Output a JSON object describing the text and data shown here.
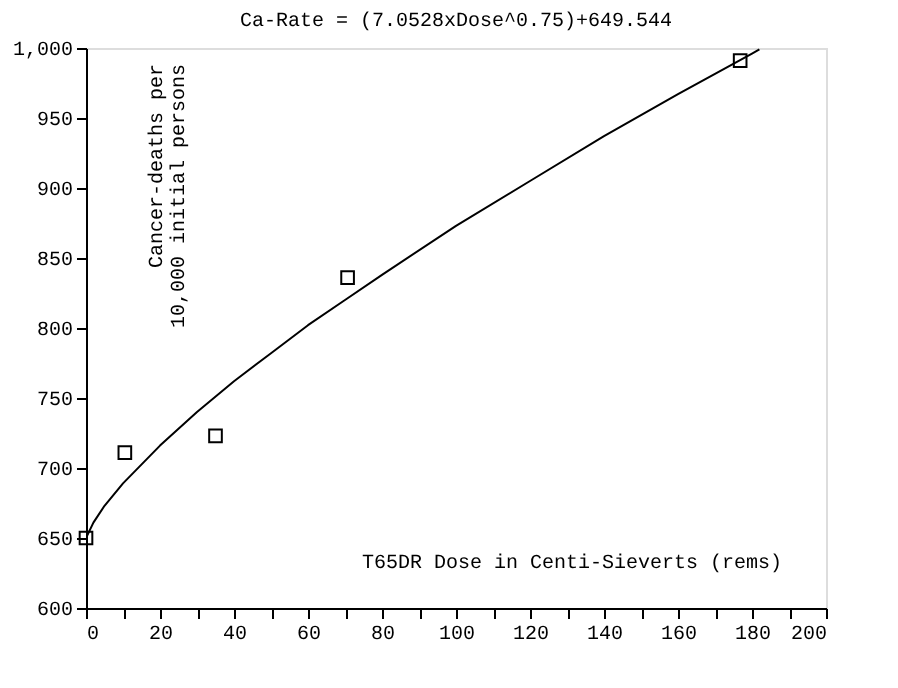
{
  "chart_data": {
    "type": "scatter",
    "title": "Ca-Rate = (7.0528xDose^0.75)+649.544",
    "xlabel": "T65DR Dose in Centi-Sieverts (rems)",
    "ylabel": "Cancer-deaths per\n10,000 initial persons",
    "xlim": [
      0,
      200
    ],
    "ylim": [
      600,
      1000
    ],
    "xticks": [
      0,
      {
        "value": 10,
        "label": null
      },
      20,
      {
        "value": 30,
        "label": null
      },
      40,
      {
        "value": 50,
        "label": null
      },
      60,
      {
        "value": 70,
        "label": null
      },
      80,
      {
        "value": 90,
        "label": null
      },
      100,
      {
        "value": 110,
        "label": null
      },
      120,
      {
        "value": 130,
        "label": null
      },
      140,
      {
        "value": 150,
        "label": null
      },
      160,
      {
        "value": 170,
        "label": null
      },
      180,
      {
        "value": 190,
        "label": null
      },
      200
    ],
    "yticks": [
      600,
      650,
      700,
      750,
      800,
      850,
      900,
      950,
      {
        "value": 1000,
        "label": "1,000"
      }
    ],
    "grid": false,
    "series": [
      {
        "marker": "square",
        "color": "#000000",
        "x": [
          0,
          10.5,
          35,
          70.7,
          176.8
        ],
        "values": [
          650,
          711,
          723,
          836,
          991
        ]
      },
      {
        "type": "line",
        "marker": "none",
        "line_style": "solid",
        "color": "#000000",
        "x": [
          0,
          2,
          5,
          10,
          20,
          30,
          40,
          50,
          60,
          70,
          80,
          100,
          120,
          140,
          160,
          180,
          182
        ],
        "values": [
          650,
          661,
          673,
          689,
          716,
          740,
          762,
          782,
          802,
          820,
          838,
          873,
          905,
          937,
          967,
          996,
          999
        ]
      }
    ]
  }
}
